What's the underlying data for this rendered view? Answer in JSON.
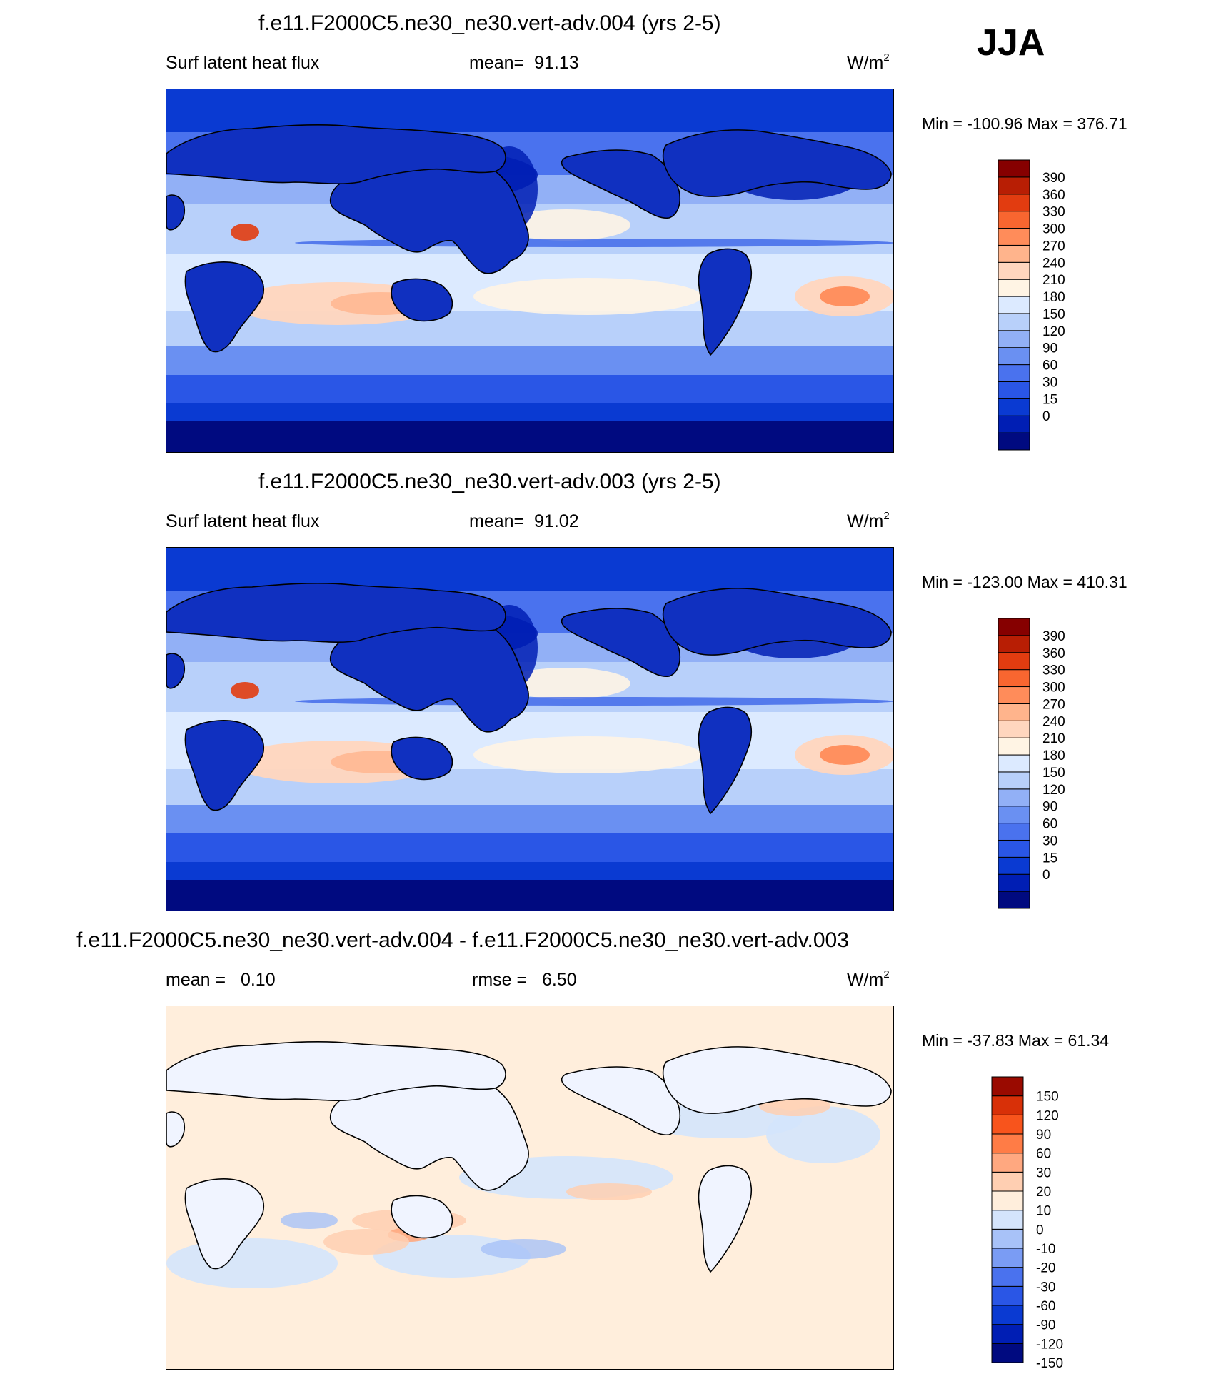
{
  "season": "JJA",
  "colors": {
    "abs_scale": [
      "#000a80",
      "#001eb4",
      "#0a3ad2",
      "#2a56e6",
      "#4a72ee",
      "#6a90f2",
      "#92b0f6",
      "#b8d0fa",
      "#dceaff",
      "#fff4e4",
      "#ffd6be",
      "#ffb48c",
      "#ff8c5a",
      "#f86630",
      "#e23c10",
      "#b81e04",
      "#860000"
    ],
    "diff_scale": [
      "#000a80",
      "#001eb4",
      "#0a3ad2",
      "#2a56e6",
      "#4a72ee",
      "#7a9cf4",
      "#a8c2f8",
      "#d4e4fc",
      "#ffeedc",
      "#ffcfb2",
      "#ffa880",
      "#ff7c46",
      "#f8541c",
      "#d83008",
      "#9a0a00"
    ]
  },
  "chart_data": [
    {
      "type": "heatmap",
      "title": "f.e11.F2000C5.ne30_ne30.vert-adv.004 (yrs 2-5)",
      "variable": "Surf latent heat flux",
      "mean_label": "mean=",
      "mean": "91.13",
      "units": "W/m",
      "units_sup": "2",
      "min_max": "Min = -100.96 Max = 376.71",
      "colorbar_ticks": [
        "390",
        "360",
        "330",
        "300",
        "270",
        "240",
        "210",
        "180",
        "150",
        "120",
        "90",
        "60",
        "30",
        "15",
        "0"
      ]
    },
    {
      "type": "heatmap",
      "title": "f.e11.F2000C5.ne30_ne30.vert-adv.003 (yrs 2-5)",
      "variable": "Surf latent heat flux",
      "mean_label": "mean=",
      "mean": "91.02",
      "units": "W/m",
      "units_sup": "2",
      "min_max": "Min = -123.00 Max = 410.31",
      "colorbar_ticks": [
        "390",
        "360",
        "330",
        "300",
        "270",
        "240",
        "210",
        "180",
        "150",
        "120",
        "90",
        "60",
        "30",
        "15",
        "0"
      ]
    },
    {
      "type": "heatmap",
      "title": "f.e11.F2000C5.ne30_ne30.vert-adv.004 - f.e11.F2000C5.ne30_ne30.vert-adv.003",
      "mean_label": "mean =",
      "mean": "0.10",
      "rmse_label": "rmse =",
      "rmse": "6.50",
      "units": "W/m",
      "units_sup": "2",
      "min_max": "Min = -37.83 Max =  61.34",
      "colorbar_ticks": [
        "150",
        "120",
        "90",
        "60",
        "30",
        "20",
        "10",
        "0",
        "-10",
        "-20",
        "-30",
        "-60",
        "-90",
        "-120",
        "-150"
      ]
    }
  ]
}
